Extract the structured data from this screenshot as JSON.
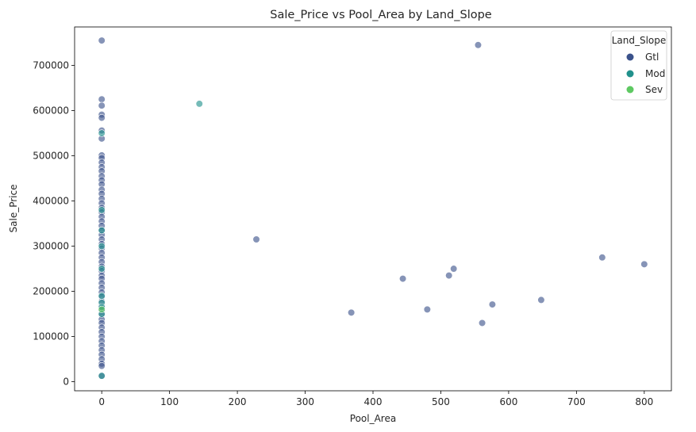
{
  "chart_data": {
    "type": "scatter",
    "title": "Sale_Price vs Pool_Area by Land_Slope",
    "xlabel": "Pool_Area",
    "ylabel": "Sale_Price",
    "xlim": [
      -40,
      840
    ],
    "ylim": [
      -20000,
      785000
    ],
    "xticks": [
      0,
      100,
      200,
      300,
      400,
      500,
      600,
      700,
      800
    ],
    "yticks": [
      0,
      100000,
      200000,
      300000,
      400000,
      500000,
      600000,
      700000
    ],
    "grid": false,
    "legend": {
      "title": "Land_Slope",
      "placement": "top-right",
      "entries": [
        "Gtl",
        "Mod",
        "Sev"
      ]
    },
    "colors": {
      "Gtl": "#3b528b",
      "Mod": "#21918c",
      "Sev": "#5ec962"
    },
    "series": [
      {
        "name": "Gtl",
        "points": [
          [
            0,
            755000
          ],
          [
            0,
            625000
          ],
          [
            0,
            611000
          ],
          [
            0,
            591000
          ],
          [
            0,
            584000
          ],
          [
            0,
            556000
          ],
          [
            0,
            538000
          ],
          [
            0,
            501000
          ],
          [
            0,
            495000
          ],
          [
            0,
            485000
          ],
          [
            0,
            475000
          ],
          [
            0,
            466000
          ],
          [
            0,
            455000
          ],
          [
            0,
            446000
          ],
          [
            0,
            437000
          ],
          [
            0,
            425000
          ],
          [
            0,
            416000
          ],
          [
            0,
            405000
          ],
          [
            0,
            395000
          ],
          [
            0,
            385000
          ],
          [
            0,
            375000
          ],
          [
            0,
            365000
          ],
          [
            0,
            355000
          ],
          [
            0,
            345000
          ],
          [
            0,
            335000
          ],
          [
            0,
            325000
          ],
          [
            0,
            315000
          ],
          [
            0,
            305000
          ],
          [
            0,
            295000
          ],
          [
            0,
            285000
          ],
          [
            0,
            275000
          ],
          [
            0,
            265000
          ],
          [
            0,
            255000
          ],
          [
            0,
            245000
          ],
          [
            0,
            235000
          ],
          [
            0,
            228000
          ],
          [
            0,
            218000
          ],
          [
            0,
            208000
          ],
          [
            0,
            198000
          ],
          [
            0,
            188000
          ],
          [
            0,
            178000
          ],
          [
            0,
            168000
          ],
          [
            0,
            158000
          ],
          [
            0,
            148000
          ],
          [
            0,
            138000
          ],
          [
            0,
            130000
          ],
          [
            0,
            120000
          ],
          [
            0,
            110000
          ],
          [
            0,
            100000
          ],
          [
            0,
            90000
          ],
          [
            0,
            80000
          ],
          [
            0,
            70000
          ],
          [
            0,
            60000
          ],
          [
            0,
            50000
          ],
          [
            0,
            40000
          ],
          [
            0,
            35000
          ],
          [
            0,
            13000
          ],
          [
            555,
            745000
          ],
          [
            228,
            315000
          ],
          [
            738,
            275000
          ],
          [
            800,
            260000
          ],
          [
            519,
            250000
          ],
          [
            512,
            235000
          ],
          [
            444,
            228000
          ],
          [
            648,
            181000
          ],
          [
            576,
            171000
          ],
          [
            480,
            160000
          ],
          [
            368,
            153000
          ],
          [
            561,
            130000
          ]
        ]
      },
      {
        "name": "Mod",
        "points": [
          [
            144,
            615000
          ],
          [
            0,
            550000
          ],
          [
            0,
            380000
          ],
          [
            0,
            335000
          ],
          [
            0,
            300000
          ],
          [
            0,
            250000
          ],
          [
            0,
            190000
          ],
          [
            0,
            175000
          ],
          [
            0,
            165000
          ],
          [
            0,
            150000
          ],
          [
            0,
            13000
          ]
        ]
      },
      {
        "name": "Sev",
        "points": [
          [
            0,
            160000
          ]
        ]
      }
    ]
  }
}
